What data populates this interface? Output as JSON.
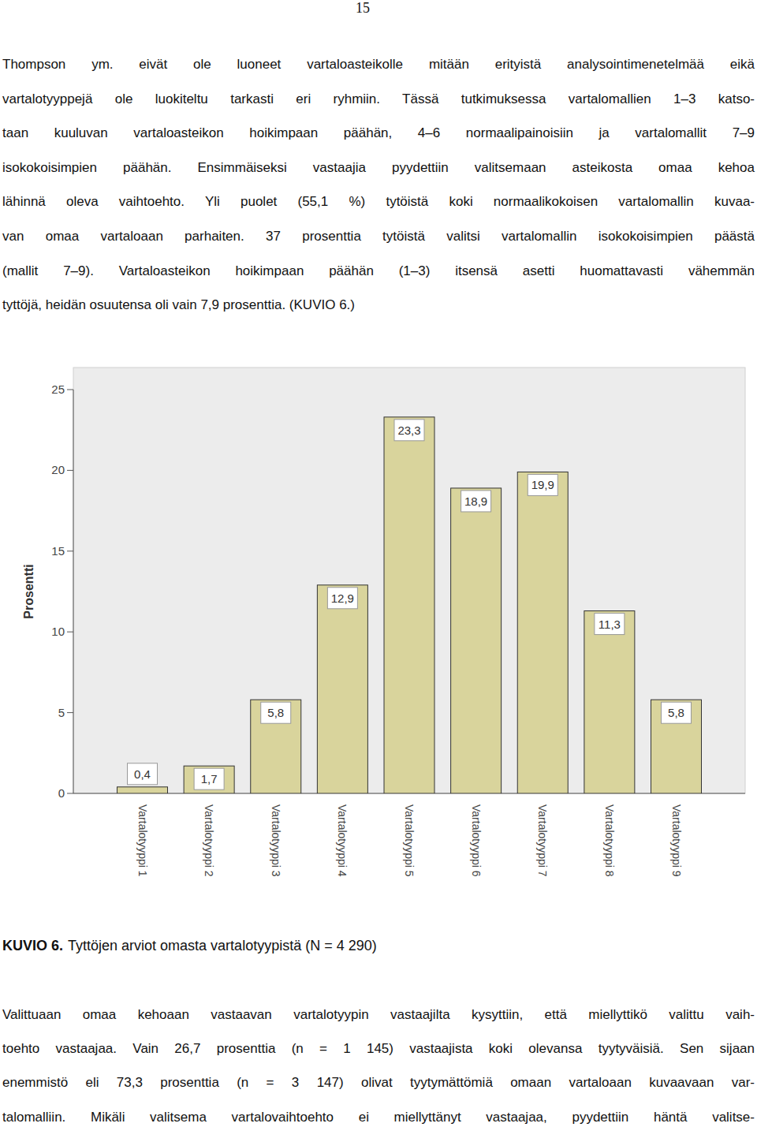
{
  "page_number": "15",
  "body_before": {
    "lines": [
      "Thompson ym. eivät ole luoneet vartaloasteikolle mitään erityistä analysointimenetelmää eikä",
      "vartalotyyppejä ole luokiteltu tarkasti eri ryhmiin. Tässä tutkimuksessa vartalomallien 1–3 katso-",
      "taan kuuluvan vartaloasteikon hoikimpaan päähän, 4–6 normaalipainoisiin ja vartalomallit 7–9",
      "isokokoisimpien päähän. Ensimmäiseksi vastaajia pyydettiin valitsemaan asteikosta omaa kehoa",
      "lähinnä oleva vaihtoehto. Yli puolet (55,1 %) tytöistä koki normaalikokoisen vartalomallin kuvaa-",
      "van omaa vartaloaan parhaiten. 37 prosenttia tytöistä valitsi vartalomallin isokokoisimpien päästä",
      "(mallit 7–9). Vartaloasteikon hoikimpaan päähän (1–3) itsensä asetti huomattavasti vähemmän",
      "tyttöjä, heidän osuutensa oli vain 7,9 prosenttia. (KUVIO 6.)"
    ]
  },
  "chart_data": {
    "type": "bar",
    "y_label": "Prosentti",
    "categories": [
      "Vartalotyyppi 1",
      "Vartalotyyppi 2",
      "Vartalotyyppi 3",
      "Vartalotyyppi 4",
      "Vartalotyyppi 5",
      "Vartalotyyppi 6",
      "Vartalotyyppi 7",
      "Vartalotyyppi 8",
      "Vartalotyyppi 9"
    ],
    "values": [
      0.4,
      1.7,
      5.8,
      12.9,
      23.3,
      18.9,
      19.9,
      11.3,
      5.8
    ],
    "value_labels": [
      "0,4",
      "1,7",
      "5,8",
      "12,9",
      "23,3",
      "18,9",
      "19,9",
      "11,3",
      "5,8"
    ],
    "color": "#d9d49c",
    "ylim": [
      0,
      25
    ],
    "yticks": [
      0,
      5,
      10,
      15,
      20,
      25
    ],
    "grid": false,
    "data_labels": true
  },
  "caption": {
    "label": "KUVIO 6.",
    "text": "Tyttöjen arviot omasta vartalotyypistä (N = 4 290)"
  },
  "body_after": {
    "lines": [
      "Valittuaan omaa kehoaan vastaavan vartalotyypin vastaajilta kysyttiin, että miellyttikö valittu vaih-",
      "toehto vastaajaa. Vain 26,7 prosenttia (n = 1 145) vastaajista koki olevansa tyytyväisiä. Sen sijaan",
      "enemmistö eli 73,3 prosenttia (n = 3 147) olivat tyytymättömiä omaan vartaloaan kuvaavaan var-",
      "talomalliin. Mikäli valitsema vartalovaihtoehto ei miellyttänyt vastaajaa, pyydettiin häntä valitse-"
    ]
  }
}
